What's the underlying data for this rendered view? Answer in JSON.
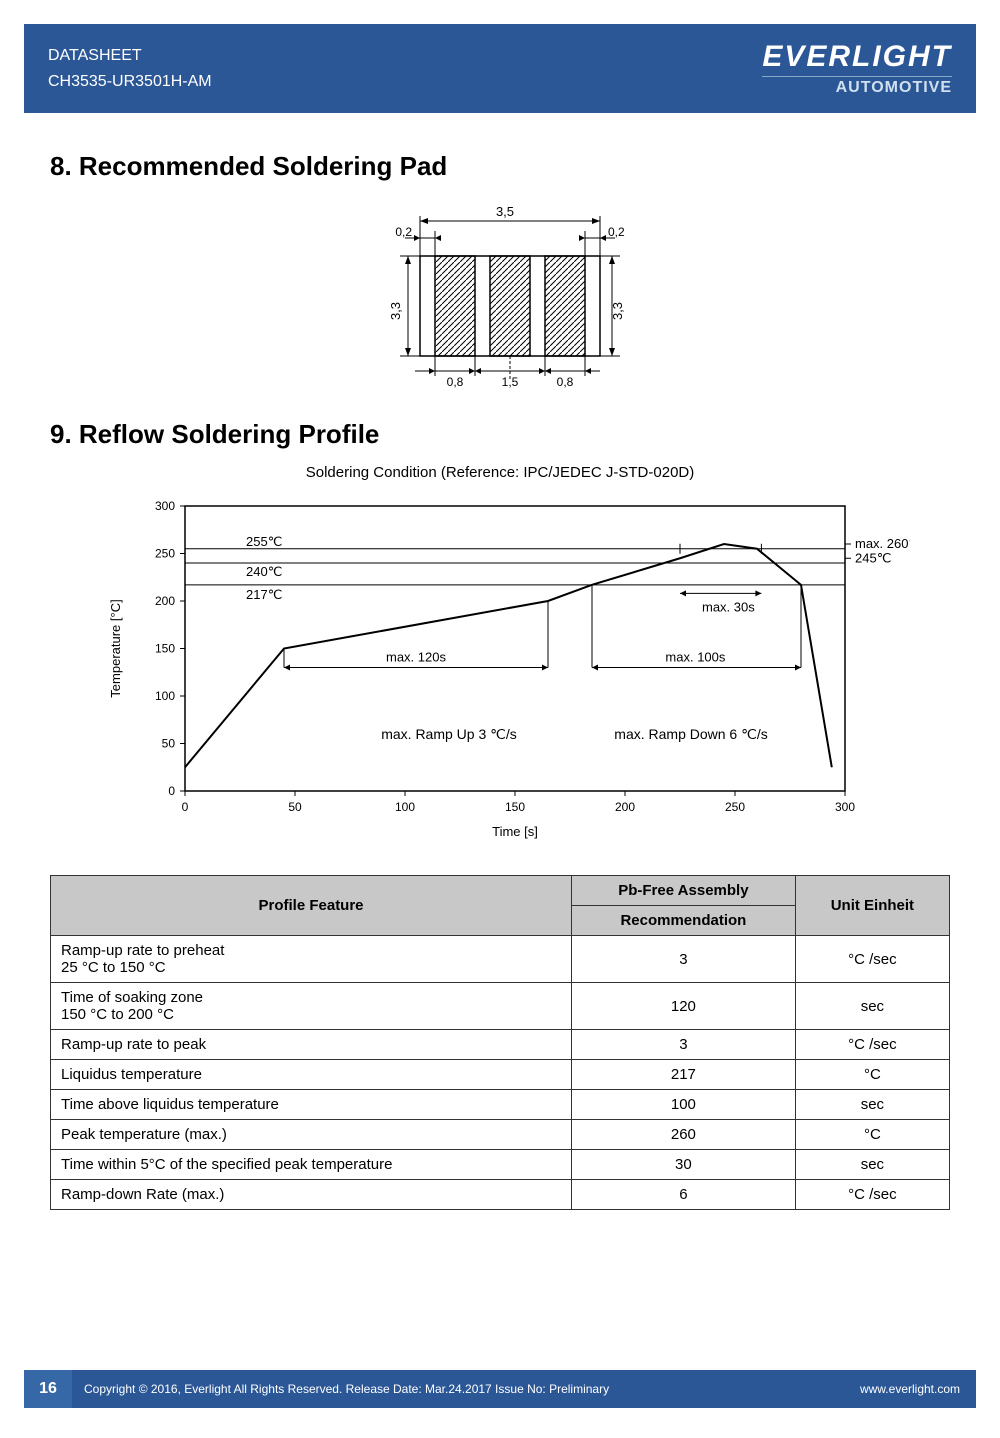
{
  "header": {
    "title": "DATASHEET",
    "part": "CH3535-UR3501H-AM",
    "brand": "EVERLIGHT",
    "sub": "AUTOMOTIVE"
  },
  "sections": {
    "pad_title": "8. Recommended Soldering Pad",
    "reflow_title": "9. Reflow Soldering Profile",
    "chart_caption": "Soldering Condition (Reference: IPC/JEDEC J-STD-020D)"
  },
  "pad_diagram": {
    "width_total": "3,5",
    "side_gap_left": "0,2",
    "side_gap_right": "0,2",
    "height": "3,3",
    "bottom_left": "0,8",
    "bottom_mid": "1,5",
    "bottom_right": "0,8"
  },
  "reflow_chart": {
    "type": "line",
    "xlabel": "Time [s]",
    "ylabel": "Temperature [°C]",
    "xlim": [
      0,
      300
    ],
    "ylim": [
      0,
      300
    ],
    "xtick_step": 50,
    "ytick_step": 50,
    "line_color": "#000000",
    "background_color": "#ffffff",
    "grid_color": "#000000",
    "title_fontsize": 13,
    "label_fontsize": 13,
    "annotations": {
      "t255": "255℃",
      "t240": "240℃",
      "t217": "217℃",
      "t260": "max. 260℃",
      "t245": "245℃",
      "max30s": "max. 30s",
      "max120s": "max. 120s",
      "max100s": "max. 100s",
      "rampup": "max. Ramp Up 3 ℃/s",
      "rampdown": "max. Ramp Down 6 ℃/s"
    },
    "profile_points": [
      [
        0,
        25
      ],
      [
        45,
        150
      ],
      [
        165,
        200
      ],
      [
        185,
        217
      ],
      [
        225,
        245
      ],
      [
        245,
        260
      ],
      [
        260,
        255
      ],
      [
        280,
        217
      ],
      [
        294,
        25
      ]
    ]
  },
  "table": {
    "headers": {
      "feature": "Profile Feature",
      "assembly_top": "Pb-Free Assembly",
      "assembly_sub": "Recommendation",
      "unit": "Unit Einheit"
    },
    "rows": [
      {
        "feature": "Ramp-up rate to preheat\n25 °C to 150 °C",
        "val": "3",
        "unit": "°C /sec"
      },
      {
        "feature": "Time of soaking zone\n150 °C to 200 °C",
        "val": "120",
        "unit": "sec"
      },
      {
        "feature": "Ramp-up rate to peak",
        "val": "3",
        "unit": "°C /sec"
      },
      {
        "feature": "Liquidus temperature",
        "val": "217",
        "unit": "°C"
      },
      {
        "feature": "Time above liquidus temperature",
        "val": "100",
        "unit": "sec"
      },
      {
        "feature": "Peak temperature (max.)",
        "val": "260",
        "unit": "°C"
      },
      {
        "feature": "Time within 5°C of the specified peak temperature",
        "val": "30",
        "unit": "sec"
      },
      {
        "feature": "Ramp-down Rate (max.)",
        "val": "6",
        "unit": "°C /sec"
      }
    ]
  },
  "footer": {
    "page": "16",
    "copyright": "Copyright © 2016, Everlight All Rights Reserved. Release Date: Mar.24.2017 Issue No: Preliminary",
    "url": "www.everlight.com"
  }
}
